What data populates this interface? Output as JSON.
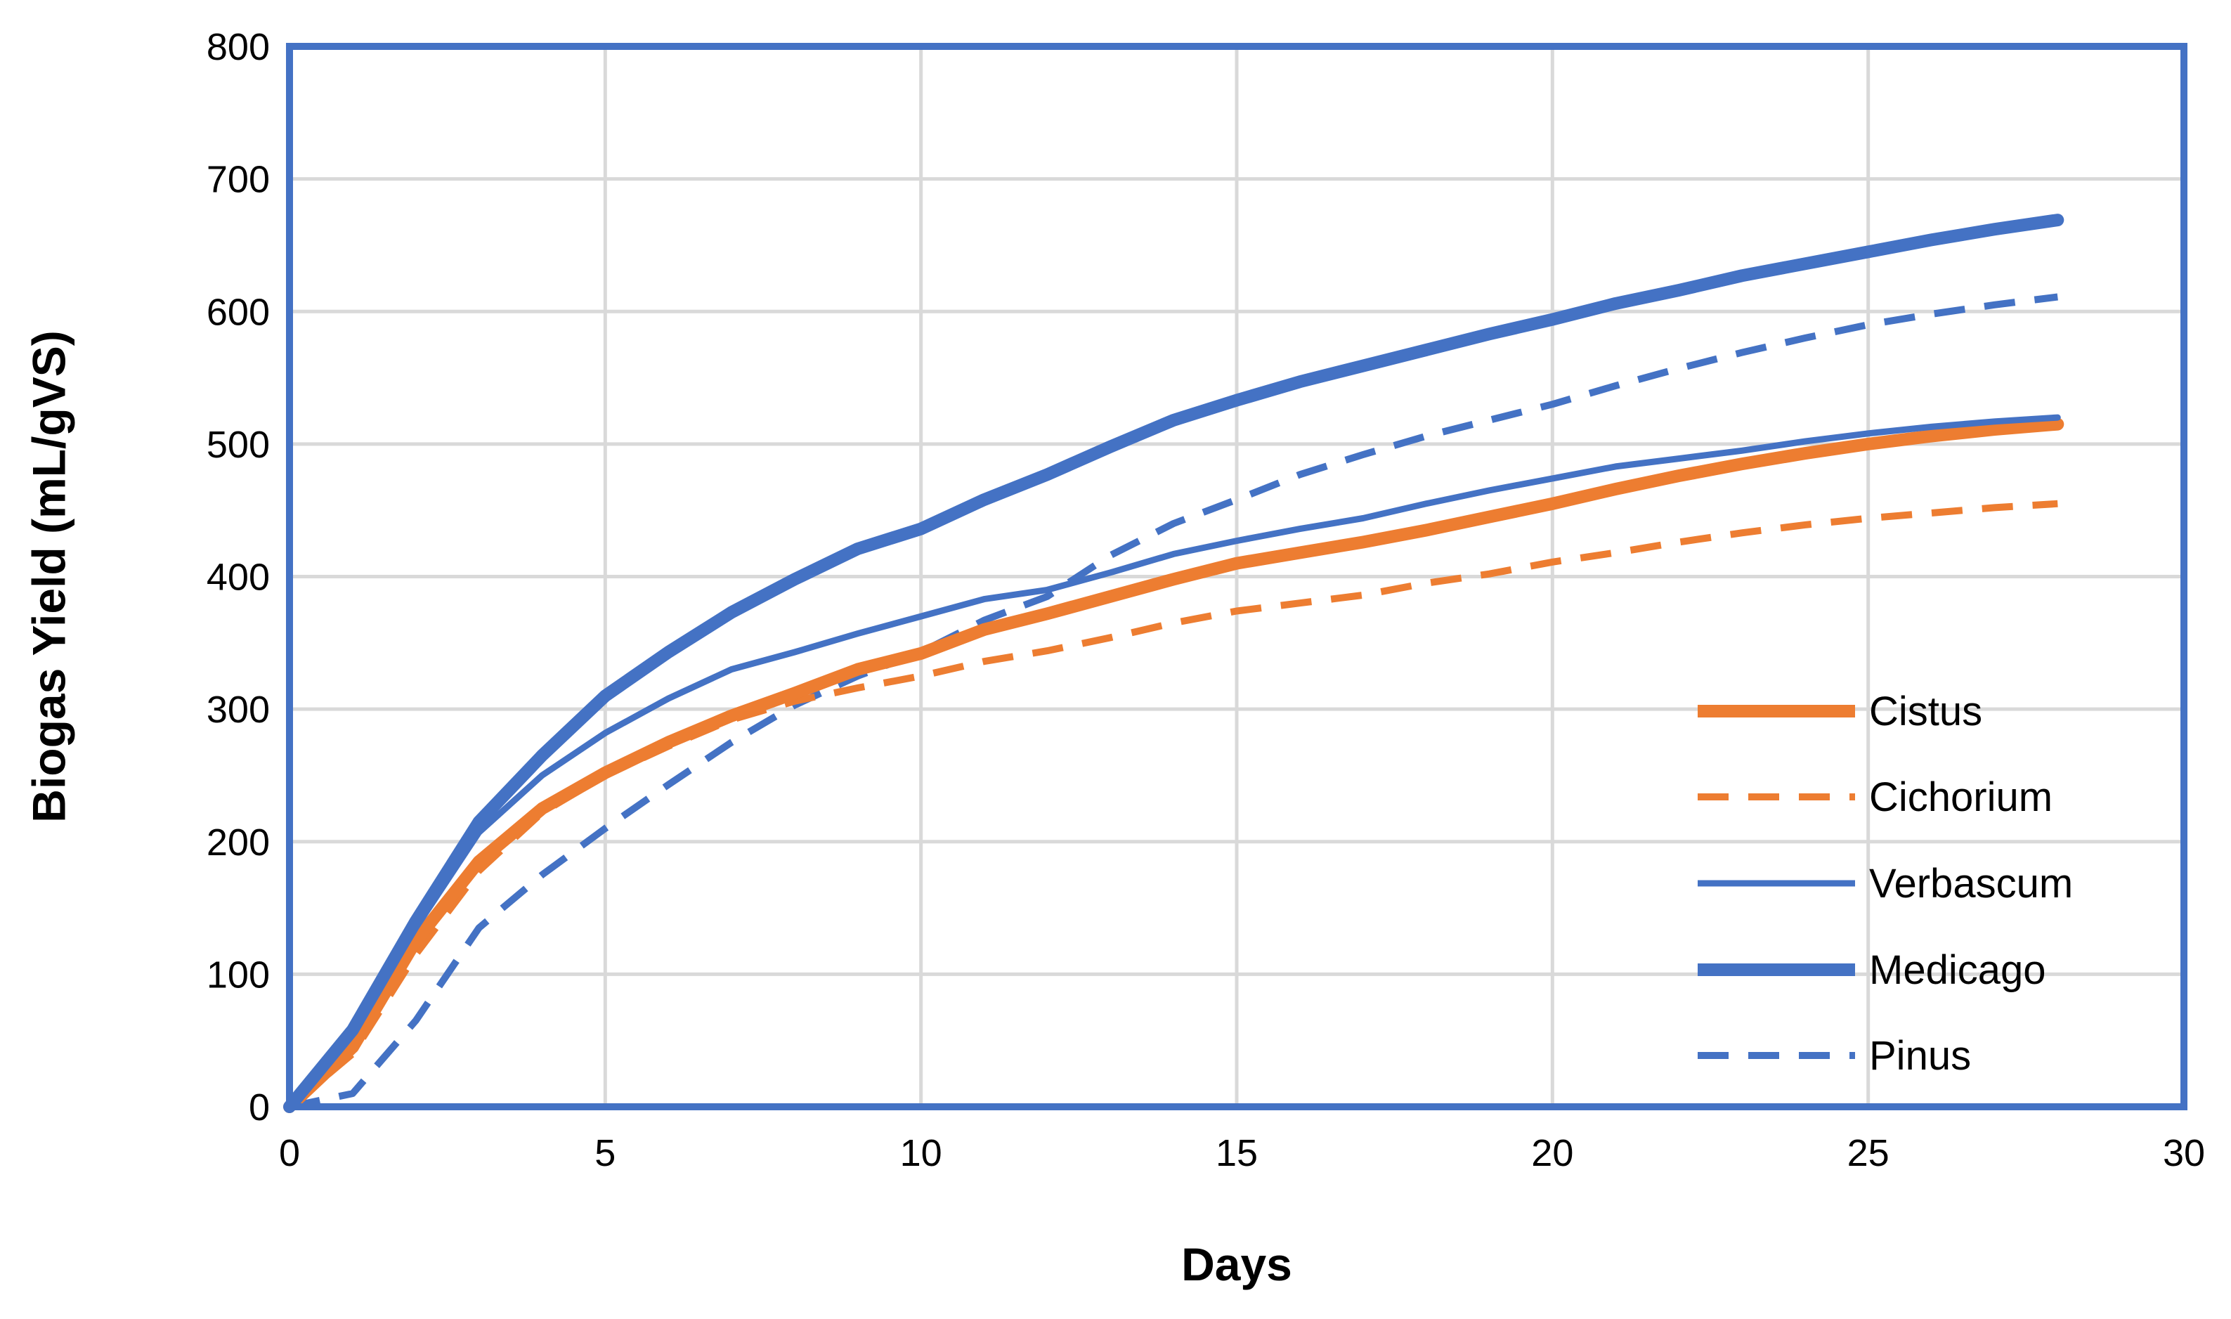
{
  "chart_data": {
    "type": "line",
    "title": "",
    "xlabel": "Days",
    "ylabel": "Biogas Yield (mL/gVS)",
    "xlim": [
      0,
      30
    ],
    "ylim": [
      0,
      800
    ],
    "xticks": [
      0,
      5,
      10,
      15,
      20,
      25,
      30
    ],
    "yticks": [
      0,
      100,
      200,
      300,
      400,
      500,
      600,
      700,
      800
    ],
    "grid": true,
    "legend_position": "bottom-right",
    "series": [
      {
        "name": "Cistus",
        "color": "#ed7d31",
        "style": "thick-solid",
        "x": [
          0,
          1,
          2,
          3,
          4,
          5,
          6,
          7,
          8,
          9,
          10,
          11,
          12,
          13,
          14,
          15,
          16,
          17,
          18,
          19,
          20,
          21,
          22,
          23,
          24,
          25,
          26,
          27,
          28
        ],
        "y": [
          0,
          45,
          125,
          185,
          225,
          252,
          275,
          295,
          312,
          330,
          342,
          360,
          372,
          385,
          398,
          410,
          418,
          426,
          435,
          445,
          455,
          466,
          476,
          485,
          493,
          500,
          506,
          511,
          515
        ]
      },
      {
        "name": "Cichorium",
        "color": "#ed7d31",
        "style": "dashed",
        "x": [
          0,
          1,
          2,
          3,
          4,
          5,
          6,
          7,
          8,
          9,
          10,
          11,
          12,
          13,
          14,
          15,
          16,
          17,
          18,
          19,
          20,
          21,
          22,
          23,
          24,
          25,
          26,
          27,
          28
        ],
        "y": [
          0,
          40,
          115,
          178,
          222,
          250,
          272,
          292,
          306,
          316,
          325,
          336,
          344,
          354,
          365,
          374,
          380,
          386,
          395,
          402,
          411,
          418,
          426,
          433,
          439,
          444,
          448,
          452,
          455
        ]
      },
      {
        "name": "Verbascum",
        "color": "#4472c4",
        "style": "thin-solid",
        "x": [
          0,
          1,
          2,
          3,
          4,
          5,
          6,
          7,
          8,
          9,
          10,
          11,
          12,
          13,
          14,
          15,
          16,
          17,
          18,
          19,
          20,
          21,
          22,
          23,
          24,
          25,
          26,
          27,
          28
        ],
        "y": [
          0,
          55,
          135,
          207,
          250,
          282,
          308,
          330,
          343,
          357,
          370,
          383,
          390,
          403,
          417,
          427,
          436,
          444,
          455,
          465,
          474,
          483,
          489,
          495,
          502,
          508,
          513,
          517,
          520
        ]
      },
      {
        "name": "Medicago",
        "color": "#4472c4",
        "style": "thick-solid",
        "x": [
          0,
          1,
          2,
          3,
          4,
          5,
          6,
          7,
          8,
          9,
          10,
          11,
          12,
          13,
          14,
          15,
          16,
          17,
          18,
          19,
          20,
          21,
          22,
          23,
          24,
          25,
          26,
          27,
          28
        ],
        "y": [
          0,
          58,
          140,
          215,
          265,
          310,
          343,
          373,
          398,
          421,
          436,
          458,
          477,
          498,
          518,
          533,
          547,
          559,
          571,
          583,
          594,
          606,
          616,
          627,
          636,
          645,
          654,
          662,
          669
        ]
      },
      {
        "name": "Pinus",
        "color": "#4472c4",
        "style": "dashed",
        "x": [
          0,
          1,
          2,
          3,
          4,
          5,
          6,
          7,
          8,
          9,
          10,
          11,
          12,
          13,
          14,
          15,
          16,
          17,
          18,
          19,
          20,
          21,
          22,
          23,
          24,
          25,
          26,
          27,
          28
        ],
        "y": [
          0,
          10,
          65,
          135,
          175,
          210,
          243,
          275,
          303,
          325,
          343,
          367,
          385,
          416,
          440,
          458,
          477,
          492,
          506,
          518,
          530,
          544,
          557,
          569,
          580,
          590,
          598,
          605,
          611
        ]
      }
    ]
  }
}
